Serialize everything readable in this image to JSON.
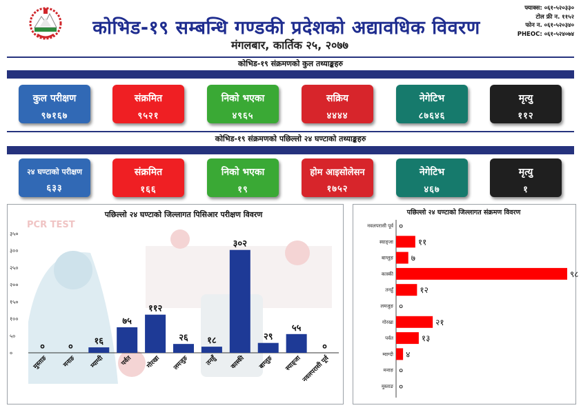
{
  "header": {
    "title": "कोभिड-१९ सम्बन्धि गण्डकी प्रदेशको अद्यावधिक विवरण",
    "date": "मंगलबार, कार्तिक २५, २०७७",
    "contacts": [
      "फ्याक्स: ०६१-५२०३३०",
      "टोल फ्री न. ११५२",
      "फोन न. ०६१-५२०३४०",
      "PHEOC: ०६१-५२४०७४"
    ]
  },
  "total_section": {
    "title": "कोभिड-१९ संक्रमणको कुल तथ्याङ्कहरु",
    "cards": [
      {
        "label": "कुल परीक्षण",
        "value": "९७१६७",
        "color": "#3169b5"
      },
      {
        "label": "संक्रमित",
        "value": "९५२१",
        "color": "#ef1f23"
      },
      {
        "label": "निको भएका",
        "value": "४९६५",
        "color": "#3aa935"
      },
      {
        "label": "सक्रिय",
        "value": "४४४४",
        "color": "#d7252b"
      },
      {
        "label": "नेगेटिभ",
        "value": "८७६४६",
        "color": "#167a6c"
      },
      {
        "label": "मृत्यु",
        "value": "११२",
        "color": "#1f1f1f"
      }
    ]
  },
  "daily_section": {
    "title": "कोभिड-१९ संक्रमणको पछिल्लो २४ घण्टाको तथ्याङ्कहरु",
    "cards": [
      {
        "label": "२४ घण्टाको परीक्षण",
        "value": "६३३",
        "color": "#3169b5"
      },
      {
        "label": "संक्रमित",
        "value": "१६६",
        "color": "#ef1f23"
      },
      {
        "label": "निको भएका",
        "value": "१९",
        "color": "#3aa935"
      },
      {
        "label": "होम आइसोलेसन",
        "value": "१७५२",
        "color": "#d7252b"
      },
      {
        "label": "नेगेटिभ",
        "value": "४६७",
        "color": "#167a6c"
      },
      {
        "label": "मृत्यु",
        "value": "१",
        "color": "#1f1f1f"
      }
    ]
  },
  "colors": {
    "navy": "#25327d",
    "bar": "#1e3a96",
    "hbar": "#ff0000"
  },
  "chart_data": [
    {
      "type": "bar",
      "title": "पछिल्लो २४ घण्टाको जिल्लागत पिसिआर परीक्षण विवरण",
      "watermark": "PCR TEST",
      "categories": [
        "मुस्ताङ",
        "मनाङ",
        "म्याग्दी",
        "पर्वत",
        "गोरखा",
        "लमजुङ",
        "तनहुँ",
        "कास्की",
        "बाग्लुङ",
        "स्याङ्जा",
        "नवलपरासी पूर्व"
      ],
      "values": [
        0,
        0,
        16,
        75,
        112,
        26,
        18,
        302,
        29,
        55,
        0
      ],
      "value_labels": [
        "०",
        "०",
        "१६",
        "७५",
        "११२",
        "२६",
        "१८",
        "३०२",
        "२९",
        "५५",
        "०"
      ],
      "yticks": [
        0,
        50,
        100,
        150,
        200,
        250,
        300,
        350
      ],
      "ytick_labels": [
        "०",
        "५०",
        "१००",
        "१५०",
        "२००",
        "२५०",
        "३००",
        "३५०"
      ],
      "ylim": [
        0,
        350
      ]
    },
    {
      "type": "bar",
      "orientation": "horizontal",
      "title": "पछिल्लो २४ घण्टाको जिल्लागत संक्रमण विवरण",
      "categories": [
        "नवलपरासी पूर्व",
        "स्याङ्जा",
        "बाग्लुङ",
        "कास्की",
        "तनहुँ",
        "लमजुङ",
        "गोरखा",
        "पर्वत",
        "म्याग्दी",
        "मनाङ",
        "मुस्ताङ"
      ],
      "values": [
        0,
        11,
        7,
        98,
        12,
        0,
        21,
        13,
        4,
        0,
        0
      ],
      "value_labels": [
        "०",
        "११",
        "७",
        "९८",
        "१२",
        "०",
        "२१",
        "१३",
        "४",
        "०",
        "०"
      ]
    }
  ]
}
